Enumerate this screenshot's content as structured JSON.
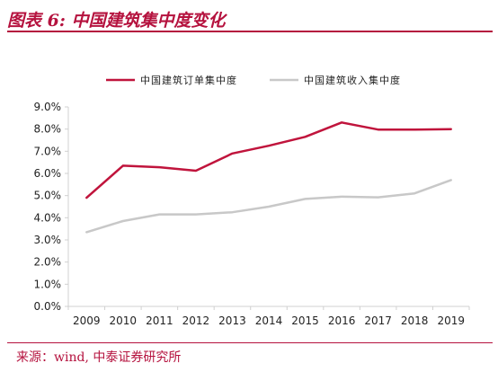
{
  "figure": {
    "title": "图表 6:  中国建筑集中度变化",
    "source": "来源：wind, 中泰证券研究所"
  },
  "colors": {
    "accent": "#b5123e",
    "series1": "#c0143c",
    "series2": "#c8c8c8",
    "axis": "#d0d0d0"
  },
  "chart_data": {
    "type": "line",
    "title": "",
    "xlabel": "",
    "ylabel": "",
    "x": [
      "2009",
      "2010",
      "2011",
      "2012",
      "2013",
      "2014",
      "2015",
      "2016",
      "2017",
      "2018",
      "2019"
    ],
    "ylim": [
      0,
      9
    ],
    "yticks": [
      0,
      1,
      2,
      3,
      4,
      5,
      6,
      7,
      8,
      9
    ],
    "ytick_labels": [
      "0.0%",
      "1.0%",
      "2.0%",
      "3.0%",
      "4.0%",
      "5.0%",
      "6.0%",
      "7.0%",
      "8.0%",
      "9.0%"
    ],
    "y_unit": "%",
    "grid": false,
    "legend_position": "top",
    "series": [
      {
        "name": "中国建筑订单集中度",
        "color": "#c0143c",
        "values": [
          4.9,
          6.35,
          6.28,
          6.12,
          6.9,
          7.25,
          7.65,
          8.3,
          7.98,
          7.98,
          8.0
        ]
      },
      {
        "name": "中国建筑收入集中度",
        "color": "#c8c8c8",
        "values": [
          3.35,
          3.85,
          4.15,
          4.15,
          4.25,
          4.5,
          4.85,
          4.95,
          4.92,
          5.1,
          5.7
        ]
      }
    ]
  }
}
